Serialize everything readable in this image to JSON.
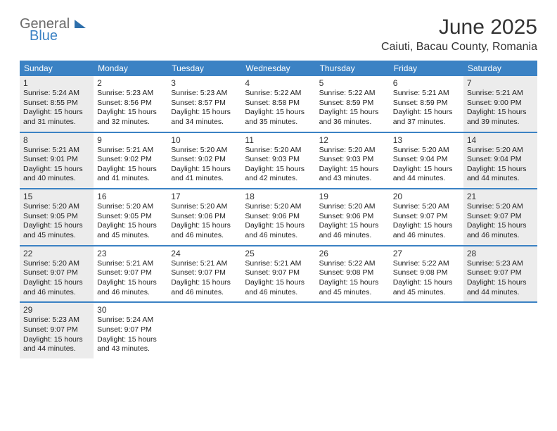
{
  "logo": {
    "word1": "General",
    "word2": "Blue"
  },
  "title": "June 2025",
  "location": "Caiuti, Bacau County, Romania",
  "header_bg": "#3b82c4",
  "daynames": [
    "Sunday",
    "Monday",
    "Tuesday",
    "Wednesday",
    "Thursday",
    "Friday",
    "Saturday"
  ],
  "weeks": [
    [
      {
        "n": "1",
        "shade": true,
        "sr": "Sunrise: 5:24 AM",
        "ss": "Sunset: 8:55 PM",
        "d1": "Daylight: 15 hours",
        "d2": "and 31 minutes."
      },
      {
        "n": "2",
        "shade": false,
        "sr": "Sunrise: 5:23 AM",
        "ss": "Sunset: 8:56 PM",
        "d1": "Daylight: 15 hours",
        "d2": "and 32 minutes."
      },
      {
        "n": "3",
        "shade": false,
        "sr": "Sunrise: 5:23 AM",
        "ss": "Sunset: 8:57 PM",
        "d1": "Daylight: 15 hours",
        "d2": "and 34 minutes."
      },
      {
        "n": "4",
        "shade": false,
        "sr": "Sunrise: 5:22 AM",
        "ss": "Sunset: 8:58 PM",
        "d1": "Daylight: 15 hours",
        "d2": "and 35 minutes."
      },
      {
        "n": "5",
        "shade": false,
        "sr": "Sunrise: 5:22 AM",
        "ss": "Sunset: 8:59 PM",
        "d1": "Daylight: 15 hours",
        "d2": "and 36 minutes."
      },
      {
        "n": "6",
        "shade": false,
        "sr": "Sunrise: 5:21 AM",
        "ss": "Sunset: 8:59 PM",
        "d1": "Daylight: 15 hours",
        "d2": "and 37 minutes."
      },
      {
        "n": "7",
        "shade": true,
        "sr": "Sunrise: 5:21 AM",
        "ss": "Sunset: 9:00 PM",
        "d1": "Daylight: 15 hours",
        "d2": "and 39 minutes."
      }
    ],
    [
      {
        "n": "8",
        "shade": true,
        "sr": "Sunrise: 5:21 AM",
        "ss": "Sunset: 9:01 PM",
        "d1": "Daylight: 15 hours",
        "d2": "and 40 minutes."
      },
      {
        "n": "9",
        "shade": false,
        "sr": "Sunrise: 5:21 AM",
        "ss": "Sunset: 9:02 PM",
        "d1": "Daylight: 15 hours",
        "d2": "and 41 minutes."
      },
      {
        "n": "10",
        "shade": false,
        "sr": "Sunrise: 5:20 AM",
        "ss": "Sunset: 9:02 PM",
        "d1": "Daylight: 15 hours",
        "d2": "and 41 minutes."
      },
      {
        "n": "11",
        "shade": false,
        "sr": "Sunrise: 5:20 AM",
        "ss": "Sunset: 9:03 PM",
        "d1": "Daylight: 15 hours",
        "d2": "and 42 minutes."
      },
      {
        "n": "12",
        "shade": false,
        "sr": "Sunrise: 5:20 AM",
        "ss": "Sunset: 9:03 PM",
        "d1": "Daylight: 15 hours",
        "d2": "and 43 minutes."
      },
      {
        "n": "13",
        "shade": false,
        "sr": "Sunrise: 5:20 AM",
        "ss": "Sunset: 9:04 PM",
        "d1": "Daylight: 15 hours",
        "d2": "and 44 minutes."
      },
      {
        "n": "14",
        "shade": true,
        "sr": "Sunrise: 5:20 AM",
        "ss": "Sunset: 9:04 PM",
        "d1": "Daylight: 15 hours",
        "d2": "and 44 minutes."
      }
    ],
    [
      {
        "n": "15",
        "shade": true,
        "sr": "Sunrise: 5:20 AM",
        "ss": "Sunset: 9:05 PM",
        "d1": "Daylight: 15 hours",
        "d2": "and 45 minutes."
      },
      {
        "n": "16",
        "shade": false,
        "sr": "Sunrise: 5:20 AM",
        "ss": "Sunset: 9:05 PM",
        "d1": "Daylight: 15 hours",
        "d2": "and 45 minutes."
      },
      {
        "n": "17",
        "shade": false,
        "sr": "Sunrise: 5:20 AM",
        "ss": "Sunset: 9:06 PM",
        "d1": "Daylight: 15 hours",
        "d2": "and 46 minutes."
      },
      {
        "n": "18",
        "shade": false,
        "sr": "Sunrise: 5:20 AM",
        "ss": "Sunset: 9:06 PM",
        "d1": "Daylight: 15 hours",
        "d2": "and 46 minutes."
      },
      {
        "n": "19",
        "shade": false,
        "sr": "Sunrise: 5:20 AM",
        "ss": "Sunset: 9:06 PM",
        "d1": "Daylight: 15 hours",
        "d2": "and 46 minutes."
      },
      {
        "n": "20",
        "shade": false,
        "sr": "Sunrise: 5:20 AM",
        "ss": "Sunset: 9:07 PM",
        "d1": "Daylight: 15 hours",
        "d2": "and 46 minutes."
      },
      {
        "n": "21",
        "shade": true,
        "sr": "Sunrise: 5:20 AM",
        "ss": "Sunset: 9:07 PM",
        "d1": "Daylight: 15 hours",
        "d2": "and 46 minutes."
      }
    ],
    [
      {
        "n": "22",
        "shade": true,
        "sr": "Sunrise: 5:20 AM",
        "ss": "Sunset: 9:07 PM",
        "d1": "Daylight: 15 hours",
        "d2": "and 46 minutes."
      },
      {
        "n": "23",
        "shade": false,
        "sr": "Sunrise: 5:21 AM",
        "ss": "Sunset: 9:07 PM",
        "d1": "Daylight: 15 hours",
        "d2": "and 46 minutes."
      },
      {
        "n": "24",
        "shade": false,
        "sr": "Sunrise: 5:21 AM",
        "ss": "Sunset: 9:07 PM",
        "d1": "Daylight: 15 hours",
        "d2": "and 46 minutes."
      },
      {
        "n": "25",
        "shade": false,
        "sr": "Sunrise: 5:21 AM",
        "ss": "Sunset: 9:07 PM",
        "d1": "Daylight: 15 hours",
        "d2": "and 46 minutes."
      },
      {
        "n": "26",
        "shade": false,
        "sr": "Sunrise: 5:22 AM",
        "ss": "Sunset: 9:08 PM",
        "d1": "Daylight: 15 hours",
        "d2": "and 45 minutes."
      },
      {
        "n": "27",
        "shade": false,
        "sr": "Sunrise: 5:22 AM",
        "ss": "Sunset: 9:08 PM",
        "d1": "Daylight: 15 hours",
        "d2": "and 45 minutes."
      },
      {
        "n": "28",
        "shade": true,
        "sr": "Sunrise: 5:23 AM",
        "ss": "Sunset: 9:07 PM",
        "d1": "Daylight: 15 hours",
        "d2": "and 44 minutes."
      }
    ],
    [
      {
        "n": "29",
        "shade": true,
        "sr": "Sunrise: 5:23 AM",
        "ss": "Sunset: 9:07 PM",
        "d1": "Daylight: 15 hours",
        "d2": "and 44 minutes."
      },
      {
        "n": "30",
        "shade": false,
        "sr": "Sunrise: 5:24 AM",
        "ss": "Sunset: 9:07 PM",
        "d1": "Daylight: 15 hours",
        "d2": "and 43 minutes."
      },
      null,
      null,
      null,
      null,
      null
    ]
  ]
}
